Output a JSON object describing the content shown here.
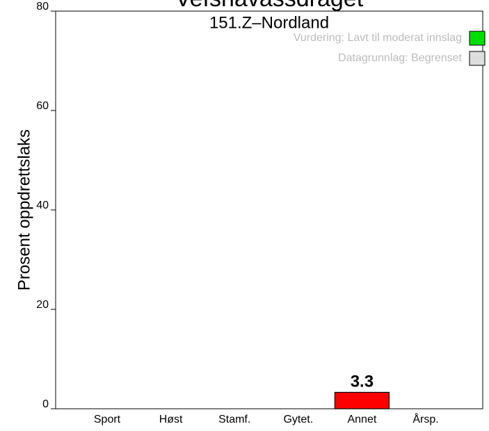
{
  "chart_data": {
    "type": "bar",
    "title": "Vefsnavassdraget",
    "subtitle": "151.Z–Nordland",
    "ylabel": "Prosent oppdrettslaks",
    "categories": [
      "Sport",
      "Høst",
      "Stamf.",
      "Gytet.",
      "Annet",
      "Årsp."
    ],
    "values": [
      null,
      null,
      null,
      null,
      3.3,
      null
    ],
    "color": "#ff0000",
    "ylim": [
      0,
      80
    ],
    "yticks": [
      0,
      20,
      40,
      60,
      80
    ],
    "legend": {
      "position": "top-right",
      "entries": [
        {
          "label": "Vurdering: Lavt til moderat innslag",
          "color": "#00dd00"
        },
        {
          "label": "Datagrunnlag: Begrenset",
          "color": "#dddddd"
        }
      ]
    }
  }
}
